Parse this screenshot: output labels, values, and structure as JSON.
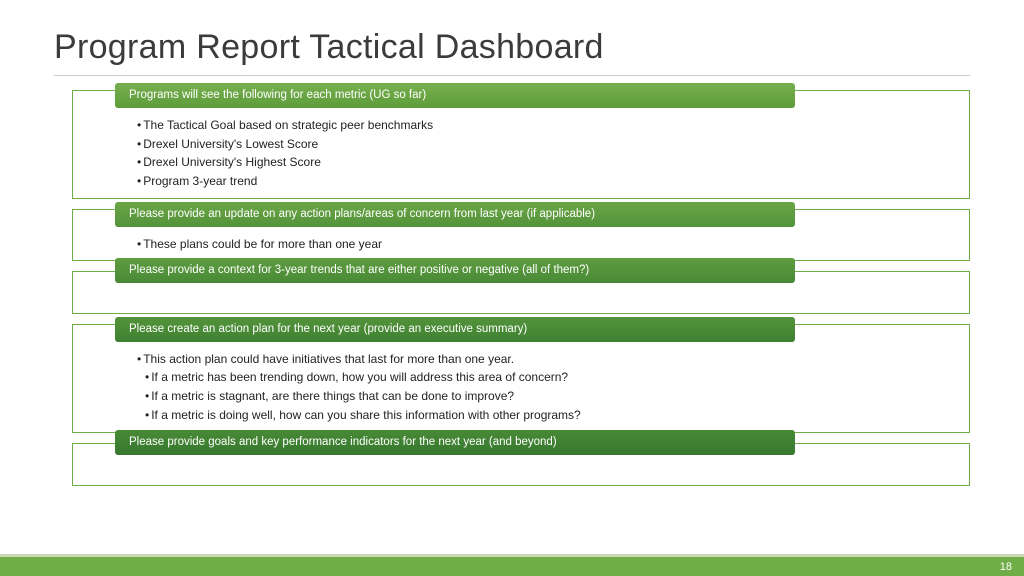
{
  "colors": {
    "title_text": "#3b3b3b",
    "underline": "#cccccc",
    "box_border": "#70ad47",
    "footer_thin": "#c6d9b0",
    "footer_main": "#70ad47",
    "page_num_text": "#ffffff",
    "header_gradients": [
      {
        "from": "#77af4f",
        "to": "#5e9c3a"
      },
      {
        "from": "#6ba546",
        "to": "#53933a"
      },
      {
        "from": "#5e9c3f",
        "to": "#498a37"
      },
      {
        "from": "#53933a",
        "to": "#3f8132"
      },
      {
        "from": "#498a37",
        "to": "#36782e"
      }
    ]
  },
  "title": "Program Report Tactical Dashboard",
  "page_number": "18",
  "boxes": [
    {
      "header": "Programs will see the following for each metric (UG so far)",
      "bullets": [
        "The Tactical Goal based on strategic peer benchmarks",
        "Drexel University's Lowest Score",
        "Drexel University's Highest Score",
        "Program 3-year trend"
      ]
    },
    {
      "header": "Please provide an update on any action plans/areas of concern from last year (if applicable)",
      "bullets": [
        "These plans could be for more than one year"
      ]
    },
    {
      "header": "Please provide a context for 3-year trends that are either positive or negative (all of them?)",
      "bullets": []
    },
    {
      "header": "Please create an action plan for the next year (provide an executive summary)",
      "bullets": [
        "This action plan could have initiatives that last for more than one year."
      ],
      "sub_bullets": [
        "If a metric has been trending down, how you will address this area of concern?",
        "If a metric is stagnant, are there things that can be done to improve?",
        "If a metric is doing well, how can you share this information with other programs?"
      ]
    },
    {
      "header": "Please provide goals and key performance indicators for the next year (and beyond)",
      "bullets": []
    }
  ]
}
